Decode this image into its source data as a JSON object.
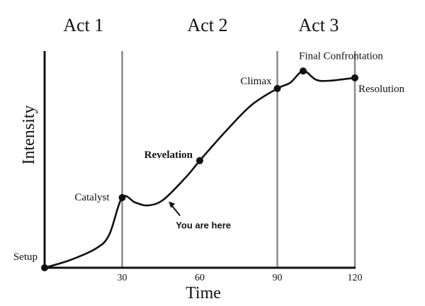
{
  "chart_data": {
    "type": "line",
    "title": "",
    "xlabel": "Time",
    "ylabel": "Intensity",
    "xlim": [
      0,
      120
    ],
    "ylim": [
      0,
      10
    ],
    "x_ticks": [
      {
        "value": 30,
        "label": "30"
      },
      {
        "value": 60,
        "label": "60"
      },
      {
        "value": 90,
        "label": "90"
      },
      {
        "value": 120,
        "label": "120"
      }
    ],
    "act_dividers": [
      30,
      90,
      120
    ],
    "acts": [
      {
        "label": "Act 1",
        "x": 15
      },
      {
        "label": "Act 2",
        "x": 63
      },
      {
        "label": "Act 3",
        "x": 106
      }
    ],
    "curve": [
      [
        0,
        0
      ],
      [
        10,
        0.4
      ],
      [
        20,
        1.0
      ],
      [
        25,
        1.7
      ],
      [
        30,
        3.6
      ],
      [
        35,
        3.35
      ],
      [
        40,
        3.2
      ],
      [
        46,
        3.5
      ],
      [
        55,
        4.7
      ],
      [
        60,
        5.5
      ],
      [
        70,
        7.0
      ],
      [
        80,
        8.35
      ],
      [
        90,
        9.2
      ],
      [
        95,
        9.5
      ],
      [
        100,
        10.1
      ],
      [
        105,
        9.65
      ],
      [
        110,
        9.6
      ],
      [
        120,
        9.75
      ]
    ],
    "key_points": [
      {
        "name": "Setup",
        "x": 0,
        "y": 0,
        "bold": false
      },
      {
        "name": "Catalyst",
        "x": 30,
        "y": 3.6,
        "bold": false
      },
      {
        "name": "Revelation",
        "x": 60,
        "y": 5.5,
        "bold": true
      },
      {
        "name": "Climax",
        "x": 90,
        "y": 9.2,
        "bold": false
      },
      {
        "name": "Final Confrontation",
        "x": 100,
        "y": 10.1,
        "bold": false
      },
      {
        "name": "Resolution",
        "x": 120,
        "y": 9.75,
        "bold": false
      }
    ],
    "annotation": {
      "text": "You are here",
      "x": 48,
      "y": 3.4
    }
  }
}
